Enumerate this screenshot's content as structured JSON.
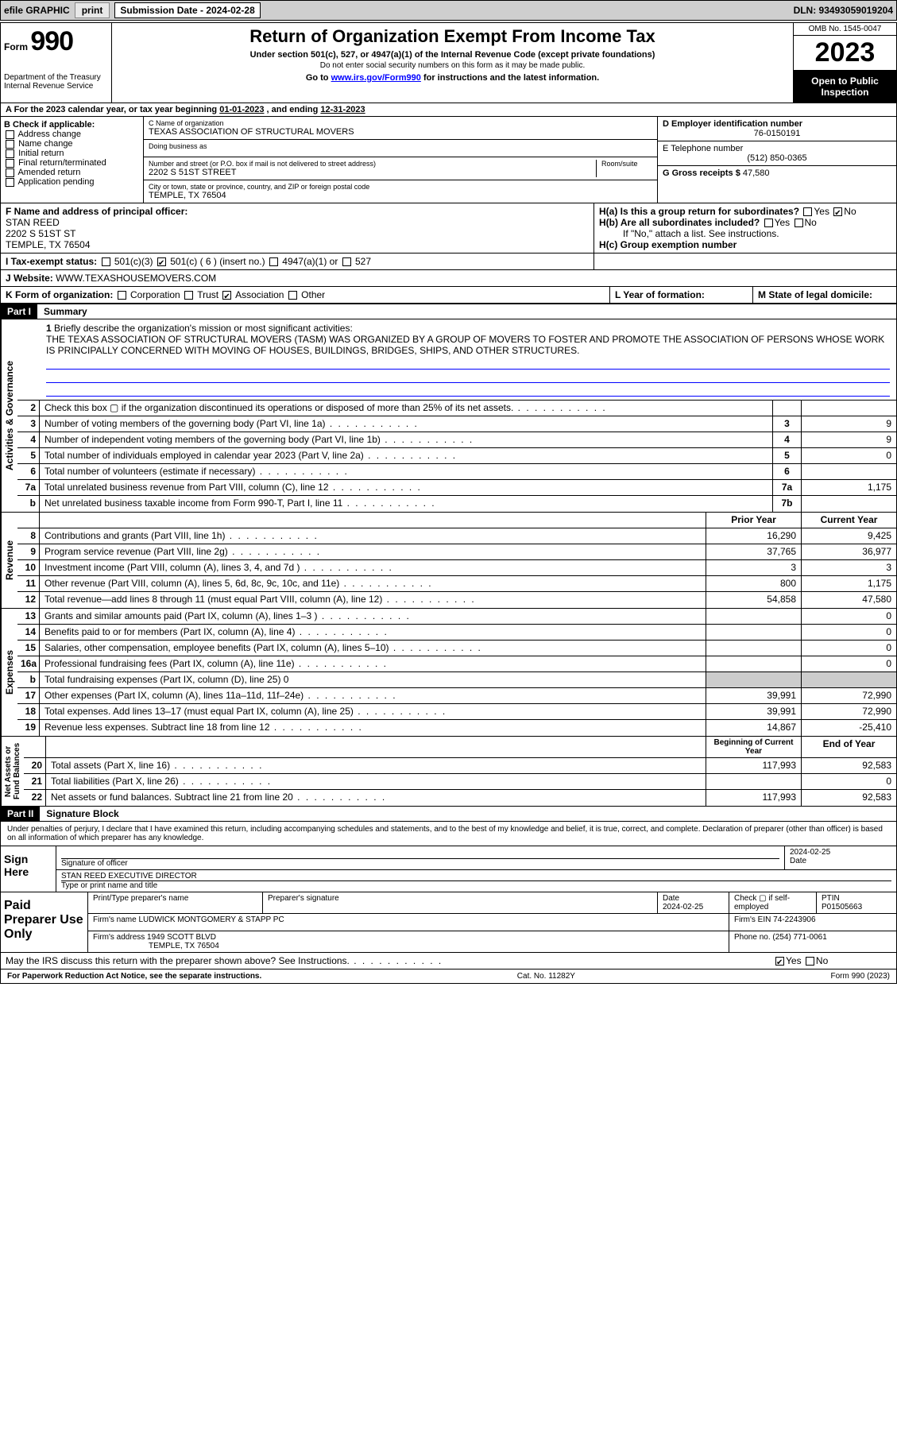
{
  "top_bar": {
    "efile": "efile GRAPHIC",
    "print": "print",
    "submission_label": "Submission Date - 2024-02-28",
    "dln": "DLN: 93493059019204"
  },
  "header": {
    "form_label": "Form",
    "form_number": "990",
    "dept": "Department of the Treasury\nInternal Revenue Service",
    "title": "Return of Organization Exempt From Income Tax",
    "subtitle": "Under section 501(c), 527, or 4947(a)(1) of the Internal Revenue Code (except private foundations)",
    "note1": "Do not enter social security numbers on this form as it may be made public.",
    "note2_pre": "Go to ",
    "note2_link": "www.irs.gov/Form990",
    "note2_post": " for instructions and the latest information.",
    "omb": "OMB No. 1545-0047",
    "year": "2023",
    "inspect": "Open to Public Inspection"
  },
  "period": {
    "label_a": "A For the 2023 calendar year, or tax year beginning ",
    "begin": "01-01-2023",
    "mid": " , and ending ",
    "end": "12-31-2023"
  },
  "boxB": {
    "header": "B Check if applicable:",
    "items": [
      "Address change",
      "Name change",
      "Initial return",
      "Final return/terminated",
      "Amended return",
      "Application pending"
    ]
  },
  "boxC": {
    "name_lbl": "C Name of organization",
    "name": "TEXAS ASSOCIATION OF STRUCTURAL MOVERS",
    "dba_lbl": "Doing business as",
    "addr_lbl": "Number and street (or P.O. box if mail is not delivered to street address)",
    "room_lbl": "Room/suite",
    "addr": "2202 S 51ST STREET",
    "city_lbl": "City or town, state or province, country, and ZIP or foreign postal code",
    "city": "TEMPLE, TX  76504"
  },
  "boxD": {
    "ein_lbl": "D Employer identification number",
    "ein": "76-0150191",
    "phone_lbl": "E Telephone number",
    "phone": "(512) 850-0365",
    "gross_lbl": "G Gross receipts $",
    "gross": "47,580"
  },
  "boxF": {
    "lbl": "F Name and address of principal officer:",
    "name": "STAN REED",
    "addr1": "2202 S 51ST ST",
    "addr2": "TEMPLE, TX  76504"
  },
  "boxH": {
    "a": "H(a)  Is this a group return for subordinates?",
    "b": "H(b)  Are all subordinates included?",
    "b_note": "If \"No,\" attach a list. See instructions.",
    "c": "H(c)  Group exemption number ",
    "yes": "Yes",
    "no": "No"
  },
  "rowI": {
    "lbl": "I  Tax-exempt status:",
    "c3": "501(c)(3)",
    "cn": "501(c) ( 6 ) (insert no.)",
    "a1": "4947(a)(1) or",
    "s527": "527"
  },
  "rowJ": {
    "lbl": "J  Website: ",
    "val": "WWW.TEXASHOUSEMOVERS.COM"
  },
  "rowK": {
    "lbl": "K Form of organization:",
    "opts": [
      "Corporation",
      "Trust",
      "Association",
      "Other"
    ],
    "checked": 2
  },
  "rowL": {
    "lbl": "L Year of formation:",
    "val": ""
  },
  "rowM": {
    "lbl": "M State of legal domicile:",
    "val": ""
  },
  "part1": {
    "hdr": "Part I",
    "title": "Summary"
  },
  "mission": {
    "num": "1",
    "lbl": "Briefly describe the organization's mission or most significant activities:",
    "text": "THE TEXAS ASSOCIATION OF STRUCTURAL MOVERS (TASM) WAS ORGANIZED BY A GROUP OF MOVERS TO FOSTER AND PROMOTE THE ASSOCIATION OF PERSONS WHOSE WORK IS PRINCIPALLY CONCERNED WITH MOVING OF HOUSES, BUILDINGS, BRIDGES, SHIPS, AND OTHER STRUCTURES."
  },
  "gov_rows": [
    {
      "num": "2",
      "txt": "Check this box ▢ if the organization discontinued its operations or disposed of more than 25% of its net assets.",
      "box": "",
      "val": ""
    },
    {
      "num": "3",
      "txt": "Number of voting members of the governing body (Part VI, line 1a)",
      "box": "3",
      "val": "9"
    },
    {
      "num": "4",
      "txt": "Number of independent voting members of the governing body (Part VI, line 1b)",
      "box": "4",
      "val": "9"
    },
    {
      "num": "5",
      "txt": "Total number of individuals employed in calendar year 2023 (Part V, line 2a)",
      "box": "5",
      "val": "0"
    },
    {
      "num": "6",
      "txt": "Total number of volunteers (estimate if necessary)",
      "box": "6",
      "val": ""
    },
    {
      "num": "7a",
      "txt": "Total unrelated business revenue from Part VIII, column (C), line 12",
      "box": "7a",
      "val": "1,175"
    },
    {
      "num": "b",
      "txt": "Net unrelated business taxable income from Form 990-T, Part I, line 11",
      "box": "7b",
      "val": ""
    }
  ],
  "rev_hdr": {
    "prior": "Prior Year",
    "curr": "Current Year"
  },
  "rev_rows": [
    {
      "num": "8",
      "txt": "Contributions and grants (Part VIII, line 1h)",
      "prior": "16,290",
      "curr": "9,425"
    },
    {
      "num": "9",
      "txt": "Program service revenue (Part VIII, line 2g)",
      "prior": "37,765",
      "curr": "36,977"
    },
    {
      "num": "10",
      "txt": "Investment income (Part VIII, column (A), lines 3, 4, and 7d )",
      "prior": "3",
      "curr": "3"
    },
    {
      "num": "11",
      "txt": "Other revenue (Part VIII, column (A), lines 5, 6d, 8c, 9c, 10c, and 11e)",
      "prior": "800",
      "curr": "1,175"
    },
    {
      "num": "12",
      "txt": "Total revenue—add lines 8 through 11 (must equal Part VIII, column (A), line 12)",
      "prior": "54,858",
      "curr": "47,580"
    }
  ],
  "exp_rows": [
    {
      "num": "13",
      "txt": "Grants and similar amounts paid (Part IX, column (A), lines 1–3 )",
      "prior": "",
      "curr": "0"
    },
    {
      "num": "14",
      "txt": "Benefits paid to or for members (Part IX, column (A), line 4)",
      "prior": "",
      "curr": "0"
    },
    {
      "num": "15",
      "txt": "Salaries, other compensation, employee benefits (Part IX, column (A), lines 5–10)",
      "prior": "",
      "curr": "0"
    },
    {
      "num": "16a",
      "txt": "Professional fundraising fees (Part IX, column (A), line 11e)",
      "prior": "",
      "curr": "0"
    },
    {
      "num": "b",
      "txt": "Total fundraising expenses (Part IX, column (D), line 25) 0",
      "prior": "—",
      "curr": "—"
    },
    {
      "num": "17",
      "txt": "Other expenses (Part IX, column (A), lines 11a–11d, 11f–24e)",
      "prior": "39,991",
      "curr": "72,990"
    },
    {
      "num": "18",
      "txt": "Total expenses. Add lines 13–17 (must equal Part IX, column (A), line 25)",
      "prior": "39,991",
      "curr": "72,990"
    },
    {
      "num": "19",
      "txt": "Revenue less expenses. Subtract line 18 from line 12",
      "prior": "14,867",
      "curr": "-25,410"
    }
  ],
  "na_hdr": {
    "prior": "Beginning of Current Year",
    "curr": "End of Year"
  },
  "na_rows": [
    {
      "num": "20",
      "txt": "Total assets (Part X, line 16)",
      "prior": "117,993",
      "curr": "92,583"
    },
    {
      "num": "21",
      "txt": "Total liabilities (Part X, line 26)",
      "prior": "",
      "curr": "0"
    },
    {
      "num": "22",
      "txt": "Net assets or fund balances. Subtract line 21 from line 20",
      "prior": "117,993",
      "curr": "92,583"
    }
  ],
  "vtabs": {
    "gov": "Activities & Governance",
    "rev": "Revenue",
    "exp": "Expenses",
    "na": "Net Assets or\nFund Balances"
  },
  "part2": {
    "hdr": "Part II",
    "title": "Signature Block"
  },
  "sig": {
    "decl": "Under penalties of perjury, I declare that I have examined this return, including accompanying schedules and statements, and to the best of my knowledge and belief, it is true, correct, and complete. Declaration of preparer (other than officer) is based on all information of which preparer has any knowledge.",
    "sign_here": "Sign Here",
    "sig_lbl": "Signature of officer",
    "date": "2024-02-25",
    "date_lbl": "Date",
    "name": "STAN REED EXECUTIVE DIRECTOR",
    "name_lbl": "Type or print name and title"
  },
  "paid": {
    "lbl": "Paid Preparer Use Only",
    "h1": "Print/Type preparer's name",
    "h2": "Preparer's signature",
    "h3_lbl": "Date",
    "h3": "2024-02-25",
    "h4": "Check ▢ if self-employed",
    "h5_lbl": "PTIN",
    "h5": "P01505663",
    "firm_lbl": "Firm's name   ",
    "firm": "LUDWICK MONTGOMERY & STAPP PC",
    "ein_lbl": "Firm's EIN  ",
    "ein": "74-2243906",
    "addr_lbl": "Firm's address ",
    "addr1": "1949 SCOTT BLVD",
    "addr2": "TEMPLE, TX  76504",
    "phone_lbl": "Phone no. ",
    "phone": "(254) 771-0061"
  },
  "discuss": {
    "txt": "May the IRS discuss this return with the preparer shown above? See Instructions.",
    "yes": "Yes",
    "no": "No"
  },
  "footer": {
    "left": "For Paperwork Reduction Act Notice, see the separate instructions.",
    "mid": "Cat. No. 11282Y",
    "right": "Form 990 (2023)"
  },
  "colors": {
    "blue": "#0000ee",
    "black": "#000000",
    "gray_bg": "#cfcfcf"
  }
}
